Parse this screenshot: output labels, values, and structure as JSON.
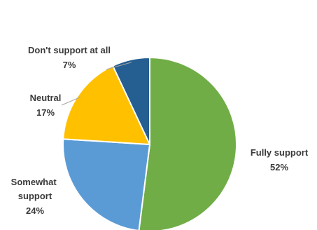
{
  "chart_data": {
    "type": "pie",
    "slices": [
      {
        "label": "Fully support",
        "value": 52,
        "value_label": "52%",
        "color": "#70AD47"
      },
      {
        "label": "Somewhat support",
        "value": 24,
        "value_label": "24%",
        "color": "#5B9BD5"
      },
      {
        "label": "Neutral",
        "value": 17,
        "value_label": "17%",
        "color": "#FFC000"
      },
      {
        "label": "Don't support at all",
        "value": 7,
        "value_label": "7%",
        "color": "#255E91"
      }
    ],
    "title": "",
    "legend": "none",
    "data_labels": "outside with category and percentage"
  }
}
